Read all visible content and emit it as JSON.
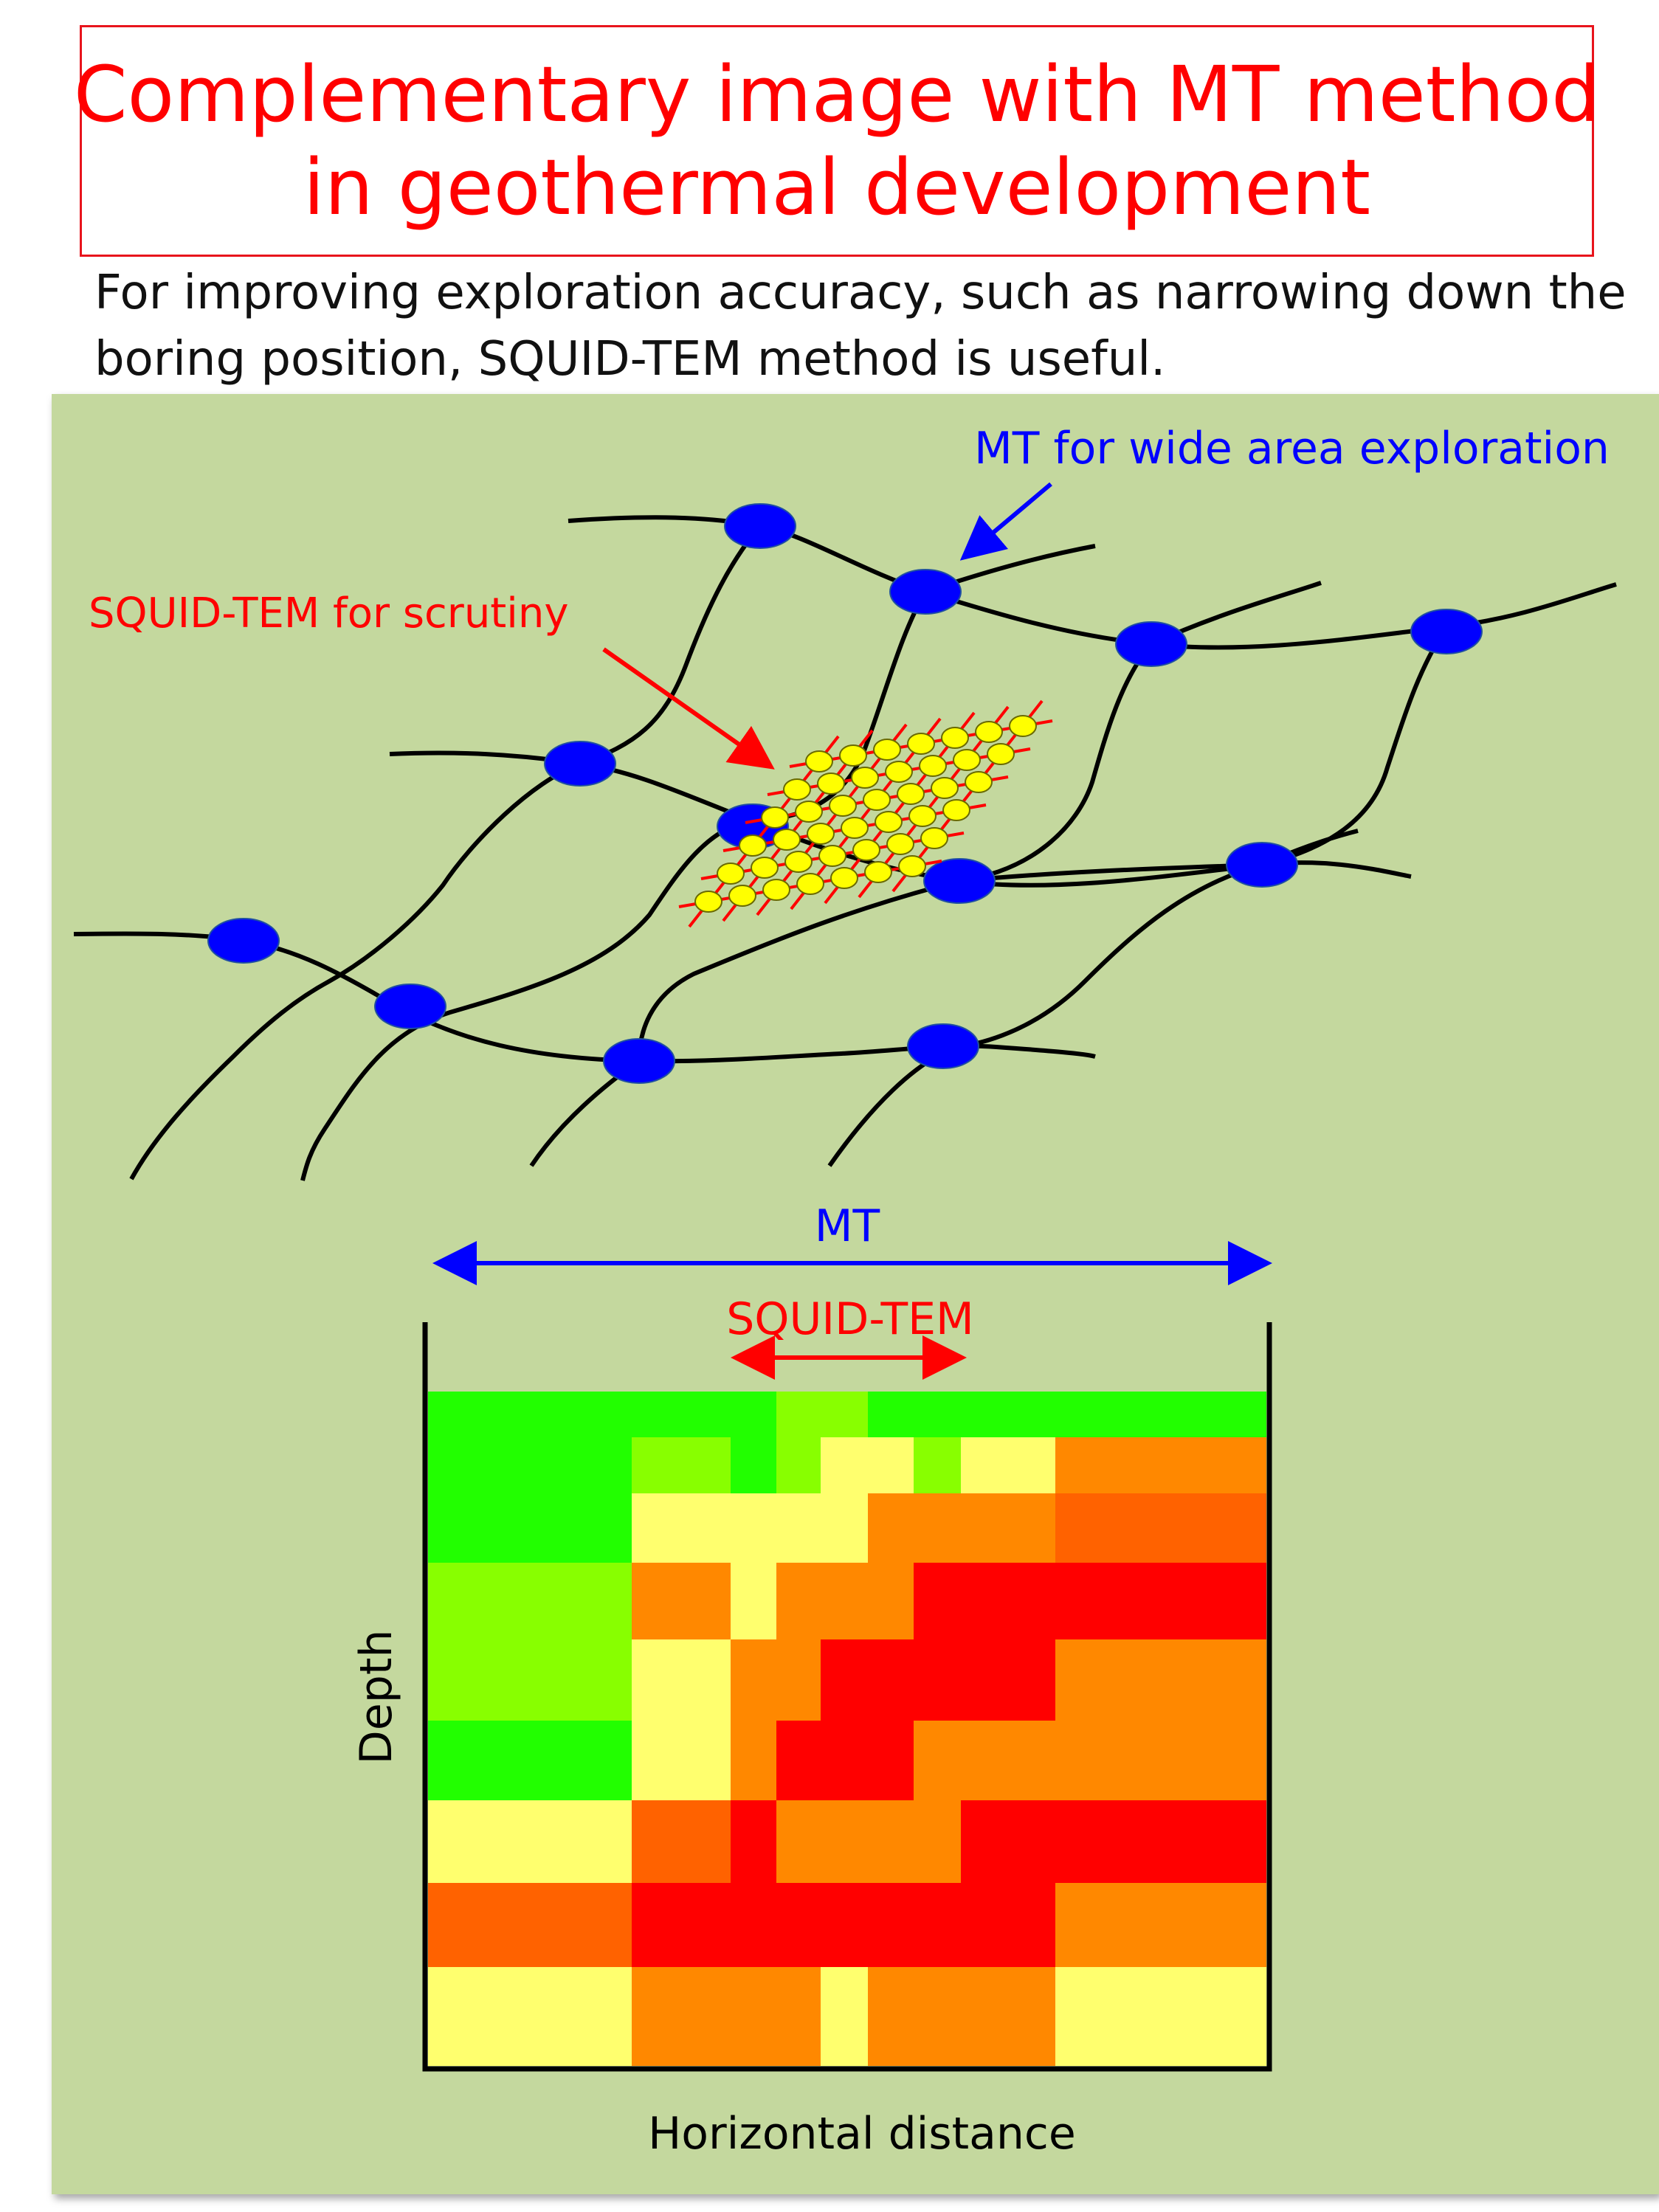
{
  "title": {
    "line1": "Complementary image with MT method",
    "line2": "in geothermal development"
  },
  "subtitle": {
    "line1": "For improving exploration accuracy, such as narrowing down the",
    "line2": "boring position, SQUID-TEM method is useful."
  },
  "labels": {
    "mt_wide": "MT for wide area exploration",
    "squid_scrutiny": "SQUID-TEM for scrutiny",
    "mt_range": "MT",
    "squid_range": "SQUID-TEM",
    "depth_axis": "Depth",
    "horizontal_axis": "Horizontal distance"
  },
  "colors": {
    "panel_bg": "#c4d89e",
    "title_red": "#ff0000",
    "mt_blue": "#0000ff",
    "squid_red": "#ff0000",
    "station_blue": "#0000ff",
    "squid_station_yellow": "#ffff00",
    "resistivity_green": "#22ff00",
    "resistivity_yellow_green": "#88ff00",
    "resistivity_light_yellow": "#ffff6e",
    "resistivity_orange": "#ff8800",
    "resistivity_dark_orange": "#ff6200",
    "resistivity_red": "#ff0000"
  }
}
